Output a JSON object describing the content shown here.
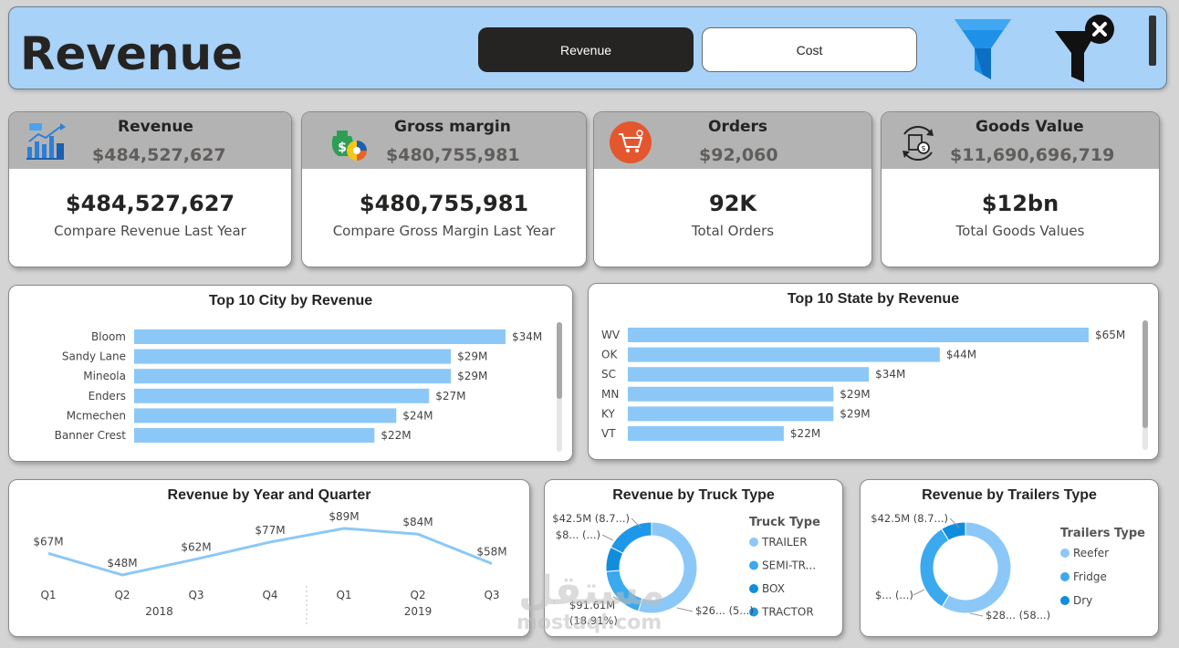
{
  "header": {
    "title": "Revenue",
    "tabs": [
      {
        "label": "Revenue",
        "active": true
      },
      {
        "label": "Cost",
        "active": false
      }
    ],
    "icons": [
      "filter-icon",
      "clear-filter-icon"
    ]
  },
  "kpis": [
    {
      "label": "Revenue",
      "sub_value": "$484,527,627",
      "value": "$484,527,627",
      "caption": "Compare Revenue Last Year",
      "icon": "revenue-chart-icon"
    },
    {
      "label": "Gross margin",
      "sub_value": "$480,755,981",
      "value": "$480,755,981",
      "caption": "Compare Gross Margin Last Year",
      "icon": "money-bag-icon"
    },
    {
      "label": "Orders",
      "sub_value": "$92,060",
      "value": "92K",
      "caption": "Total Orders",
      "icon": "cart-icon"
    },
    {
      "label": "Goods Value",
      "sub_value": "$11,690,696,719",
      "value": "$12bn",
      "caption": "Total Goods Values",
      "icon": "goods-box-icon"
    }
  ],
  "city_chart": {
    "title": "Top 10 City by Revenue",
    "chart_data": {
      "type": "bar",
      "orientation": "horizontal",
      "categories": [
        "Bloom",
        "Sandy Lane",
        "Mineola",
        "Enders",
        "Mcmechen",
        "Banner Crest"
      ],
      "values": [
        34,
        29,
        29,
        27,
        24,
        22
      ],
      "labels": [
        "$34M",
        "$29M",
        "$29M",
        "$27M",
        "$24M",
        "$22M"
      ],
      "color": "#8cc8f7"
    }
  },
  "state_chart": {
    "title": "Top 10 State by Revenue",
    "chart_data": {
      "type": "bar",
      "orientation": "horizontal",
      "categories": [
        "WV",
        "OK",
        "SC",
        "MN",
        "KY",
        "VT"
      ],
      "values": [
        65,
        44,
        34,
        29,
        29,
        22
      ],
      "labels": [
        "$65M",
        "$44M",
        "$34M",
        "$29M",
        "$29M",
        "$22M"
      ],
      "color": "#8cc8f7"
    }
  },
  "line_chart": {
    "title": "Revenue by Year and Quarter",
    "chart_data": {
      "type": "line",
      "categories": [
        "Q1",
        "Q2",
        "Q3",
        "Q4",
        "Q1",
        "Q2",
        "Q3"
      ],
      "years": [
        {
          "label": "2018",
          "quarters": 4
        },
        {
          "label": "2019",
          "quarters": 3
        }
      ],
      "values": [
        67,
        48,
        62,
        77,
        89,
        84,
        58
      ],
      "labels": [
        "$67M",
        "$48M",
        "$62M",
        "$77M",
        "$89M",
        "$84M",
        "$58M"
      ],
      "color": "#8cc8f7"
    }
  },
  "truck_chart": {
    "title": "Revenue by Truck Type",
    "legend_title": "Truck Type",
    "chart_data": {
      "type": "pie",
      "donut": true,
      "slices": [
        {
          "name": "TRAILER",
          "value": 265,
          "color": "#8cc8f7"
        },
        {
          "name": "SEMI-TR...",
          "value": 91.61,
          "color": "#3aa9ee"
        },
        {
          "name": "BOX",
          "value": 42.5,
          "color": "#118dde"
        },
        {
          "name": "TRACTOR",
          "value": 85,
          "color": "#1e97e8"
        }
      ],
      "data_labels": [
        "$42.5M (8.7...)",
        "$8... (...)",
        "$91.61M",
        "(18.91%)",
        "$26... (5...)"
      ]
    }
  },
  "trailer_chart": {
    "title": "Revenue by Trailers Type",
    "legend_title": "Trailers Type",
    "chart_data": {
      "type": "pie",
      "donut": true,
      "slices": [
        {
          "name": "Reefer",
          "value": 284,
          "color": "#8cc8f7"
        },
        {
          "name": "Fridge",
          "value": 158,
          "color": "#3aa9ee"
        },
        {
          "name": "Dry",
          "value": 42.5,
          "color": "#118dde"
        }
      ],
      "data_labels": [
        "$42.5M (8.7...)",
        "$... (...)",
        "$28... (58...)"
      ]
    }
  },
  "watermark": {
    "text": "mostaql.com",
    "arabic": "مستقل"
  }
}
